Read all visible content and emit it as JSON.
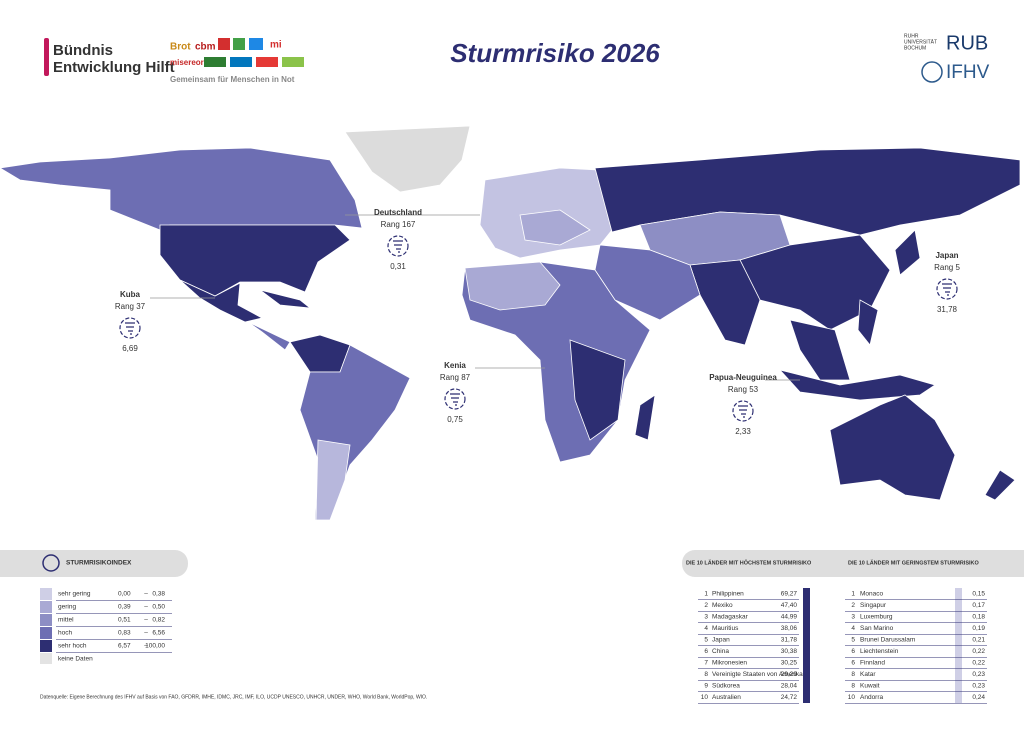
{
  "header": {
    "org_line1": "Bündnis",
    "org_line2": "Entwicklung Hilft",
    "org_tagline": "Gemeinsam für Menschen in Not",
    "partner_logos": [
      "Brot",
      "cbm",
      "mi",
      "misereor"
    ],
    "title": "Sturmrisiko 2026",
    "uni_name": [
      "RUHR",
      "UNIVERSITÄT",
      "BOCHUM"
    ],
    "uni_abbr": "RUB",
    "institute": "IFHV"
  },
  "callouts": [
    {
      "country": "Deutschland",
      "rank": "Rang 167",
      "value": "0,31"
    },
    {
      "country": "Japan",
      "rank": "Rang 5",
      "value": "31,78"
    },
    {
      "country": "Kuba",
      "rank": "Rang 37",
      "value": "6,69"
    },
    {
      "country": "Kenia",
      "rank": "Rang 87",
      "value": "0,75"
    },
    {
      "country": "Papua-Neuguinea",
      "rank": "Rang 53",
      "value": "2,33"
    }
  ],
  "legend": {
    "title": "STURMRISIKOINDEX",
    "separator": "–",
    "rows": [
      {
        "label": "sehr gering",
        "from": "0,00",
        "to": "0,38"
      },
      {
        "label": "gering",
        "from": "0,39",
        "to": "0,50"
      },
      {
        "label": "mittel",
        "from": "0,51",
        "to": "0,82"
      },
      {
        "label": "hoch",
        "from": "0,83",
        "to": "6,56"
      },
      {
        "label": "sehr hoch",
        "from": "6,57",
        "to": "100,00"
      }
    ],
    "no_data": "keine Daten"
  },
  "top10_highest": {
    "title": "DIE 10 LÄNDER MIT HÖCHSTEM STURMRISIKO",
    "rows": [
      [
        "1",
        "Philippinen",
        "69,27"
      ],
      [
        "2",
        "Mexiko",
        "47,40"
      ],
      [
        "3",
        "Madagaskar",
        "44,99"
      ],
      [
        "4",
        "Mauritius",
        "38,06"
      ],
      [
        "5",
        "Japan",
        "31,78"
      ],
      [
        "6",
        "China",
        "30,38"
      ],
      [
        "7",
        "Mikronesien",
        "30,25"
      ],
      [
        "8",
        "Vereinigte Staaten von Amerika",
        "29,29"
      ],
      [
        "9",
        "Südkorea",
        "28,04"
      ],
      [
        "10",
        "Australien",
        "24,72"
      ]
    ]
  },
  "top10_lowest": {
    "title": "DIE 10 LÄNDER MIT GERINGSTEM STURMRISIKO",
    "rows": [
      [
        "1",
        "Monaco",
        "0,15"
      ],
      [
        "2",
        "Singapur",
        "0,17"
      ],
      [
        "3",
        "Luxemburg",
        "0,18"
      ],
      [
        "4",
        "San Marino",
        "0,19"
      ],
      [
        "5",
        "Brunei Darussalam",
        "0,21"
      ],
      [
        "6",
        "Liechtenstein",
        "0,22"
      ],
      [
        "6",
        "Finnland",
        "0,22"
      ],
      [
        "8",
        "Katar",
        "0,23"
      ],
      [
        "8",
        "Kuwait",
        "0,23"
      ],
      [
        "10",
        "Andorra",
        "0,24"
      ]
    ]
  },
  "source": "Datenquelle: Eigene Berechnung des IFHV auf Basis von FAO, GFDRR, IMHE, IDMC, JRC, IMF, ILO, UCDP UNESCO, UNHCR, UNDER, WHO, World Bank, WorldPop, WIO."
}
